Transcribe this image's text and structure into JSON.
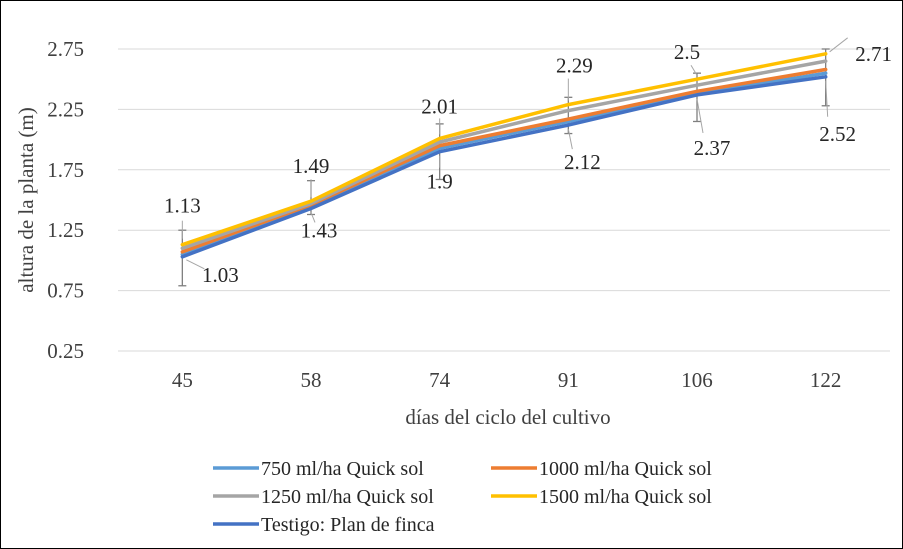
{
  "chart_data": {
    "type": "line",
    "x": [
      "45",
      "58",
      "74",
      "91",
      "106",
      "122"
    ],
    "xlabel": "días del ciclo del cultivo",
    "ylabel": "altura de la planta (m)",
    "ylim": [
      0.25,
      2.75
    ],
    "yticks": [
      "0.25",
      "0.75",
      "1.25",
      "1.75",
      "2.25",
      "2.75"
    ],
    "grid": "horizontal",
    "legend_position": "bottom",
    "series": [
      {
        "name": "750 ml/ha Quick sol",
        "color": "#5B9BD5",
        "values": [
          1.05,
          1.45,
          1.93,
          2.15,
          2.38,
          2.55
        ]
      },
      {
        "name": "1000 ml/ha Quick sol",
        "color": "#ED7D31",
        "values": [
          1.07,
          1.46,
          1.95,
          2.17,
          2.4,
          2.58
        ]
      },
      {
        "name": "1250 ml/ha Quick sol",
        "color": "#A5A5A5",
        "values": [
          1.1,
          1.47,
          1.98,
          2.24,
          2.45,
          2.65
        ]
      },
      {
        "name": "1500 ml/ha Quick sol",
        "color": "#FFC000",
        "values": [
          1.13,
          1.49,
          2.01,
          2.29,
          2.5,
          2.71
        ]
      },
      {
        "name": "Testigo: Plan de finca",
        "color": "#4472C4",
        "values": [
          1.03,
          1.43,
          1.9,
          2.12,
          2.37,
          2.52
        ]
      }
    ],
    "data_labels": {
      "top": [
        "1.13",
        "1.49",
        "2.01",
        "2.29",
        "2.5",
        "2.71"
      ],
      "bottom": [
        "1.03",
        "1.43",
        "1.9",
        "2.12",
        "2.37",
        "2.52"
      ]
    },
    "error_bars": {
      "upper": [
        1.25,
        1.66,
        2.13,
        2.35,
        2.55,
        2.75
      ],
      "lower": [
        0.79,
        1.38,
        1.67,
        2.05,
        2.15,
        2.28
      ]
    }
  }
}
